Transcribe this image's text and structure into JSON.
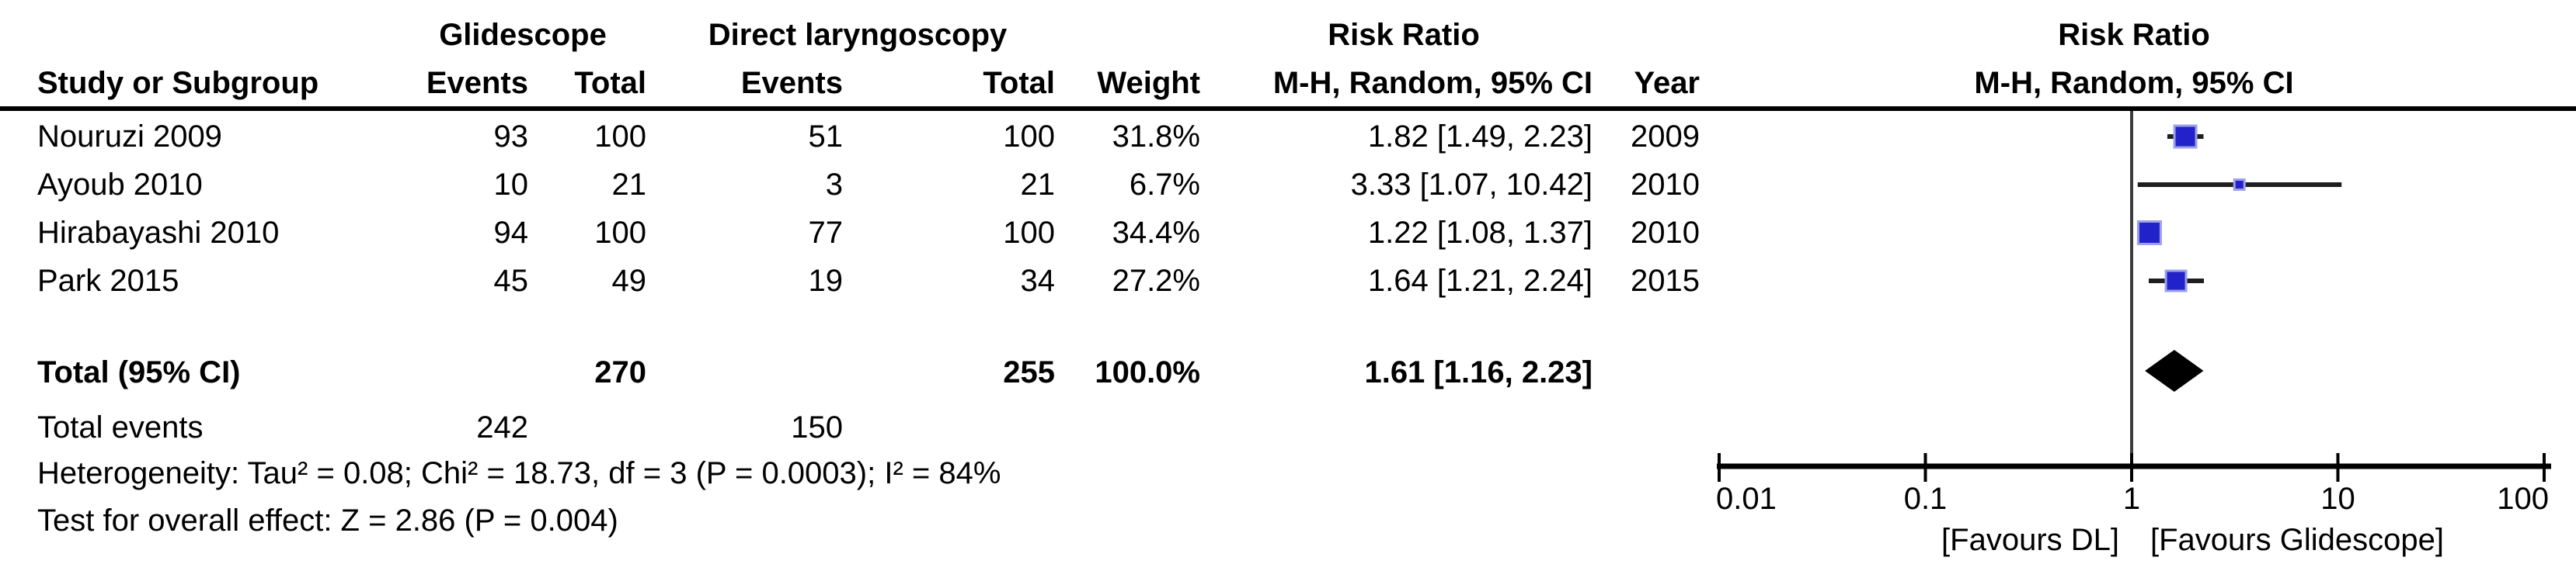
{
  "chart_data": {
    "type": "forest",
    "effect_measure": "Risk Ratio",
    "model": "M-H, Random, 95% CI",
    "columns": {
      "study": "Study or Subgroup",
      "events": "Events",
      "total": "Total",
      "weight": "Weight",
      "effect_line1": "Risk Ratio",
      "effect_line2": "M-H, Random, 95% CI",
      "year": "Year"
    },
    "groups": [
      {
        "name": "Glidescope"
      },
      {
        "name": "Direct laryngoscopy"
      }
    ],
    "plot": {
      "header_line1": "Risk Ratio",
      "header_line2": "M-H, Random, 95% CI"
    },
    "studies": [
      {
        "name": "Nouruzi 2009",
        "g_events": "93",
        "g_total": "100",
        "d_events": "51",
        "d_total": "100",
        "weight": "31.8%",
        "weight_pct": 31.8,
        "effect_text": "1.82 [1.49, 2.23]",
        "year": "2009",
        "rr": 1.82,
        "ci_low": 1.49,
        "ci_high": 2.23
      },
      {
        "name": "Ayoub 2010",
        "g_events": "10",
        "g_total": "21",
        "d_events": "3",
        "d_total": "21",
        "weight": "6.7%",
        "weight_pct": 6.7,
        "effect_text": "3.33 [1.07, 10.42]",
        "year": "2010",
        "rr": 3.33,
        "ci_low": 1.07,
        "ci_high": 10.42
      },
      {
        "name": "Hirabayashi 2010",
        "g_events": "94",
        "g_total": "100",
        "d_events": "77",
        "d_total": "100",
        "weight": "34.4%",
        "weight_pct": 34.4,
        "effect_text": "1.22 [1.08, 1.37]",
        "year": "2010",
        "rr": 1.22,
        "ci_low": 1.08,
        "ci_high": 1.37
      },
      {
        "name": "Park 2015",
        "g_events": "45",
        "g_total": "49",
        "d_events": "19",
        "d_total": "34",
        "weight": "27.2%",
        "weight_pct": 27.2,
        "effect_text": "1.64 [1.21, 2.24]",
        "year": "2015",
        "rr": 1.64,
        "ci_low": 1.21,
        "ci_high": 2.24
      }
    ],
    "total": {
      "label": "Total (95% CI)",
      "g_total": "270",
      "d_total": "255",
      "weight": "100.0%",
      "effect_text": "1.61 [1.16, 2.23]",
      "rr": 1.61,
      "ci_low": 1.16,
      "ci_high": 2.23
    },
    "total_events": {
      "label": "Total events",
      "g_events": "242",
      "d_events": "150"
    },
    "heterogeneity_text": "Heterogeneity: Tau² = 0.08; Chi² = 18.73, df = 3 (P = 0.0003); I² = 84%",
    "overall_effect_text": "Test for overall effect: Z = 2.86 (P = 0.004)",
    "axis": {
      "scale": "log10",
      "range": [
        0.01,
        100
      ],
      "ticks": [
        0.01,
        0.1,
        1,
        10,
        100
      ],
      "tick_labels": [
        "0.01",
        "0.1",
        "1",
        "10",
        "100"
      ]
    },
    "favours": {
      "left": "[Favours DL]",
      "right": "[Favours Glidescope]"
    },
    "colors": {
      "square": "#2222CB",
      "square_border": "#9EA0E9",
      "ci_line": "#1E1E1E",
      "diamond": "#000000",
      "axis": "#000000",
      "reference_line": "#3C3C3C",
      "text": "#000000"
    }
  }
}
